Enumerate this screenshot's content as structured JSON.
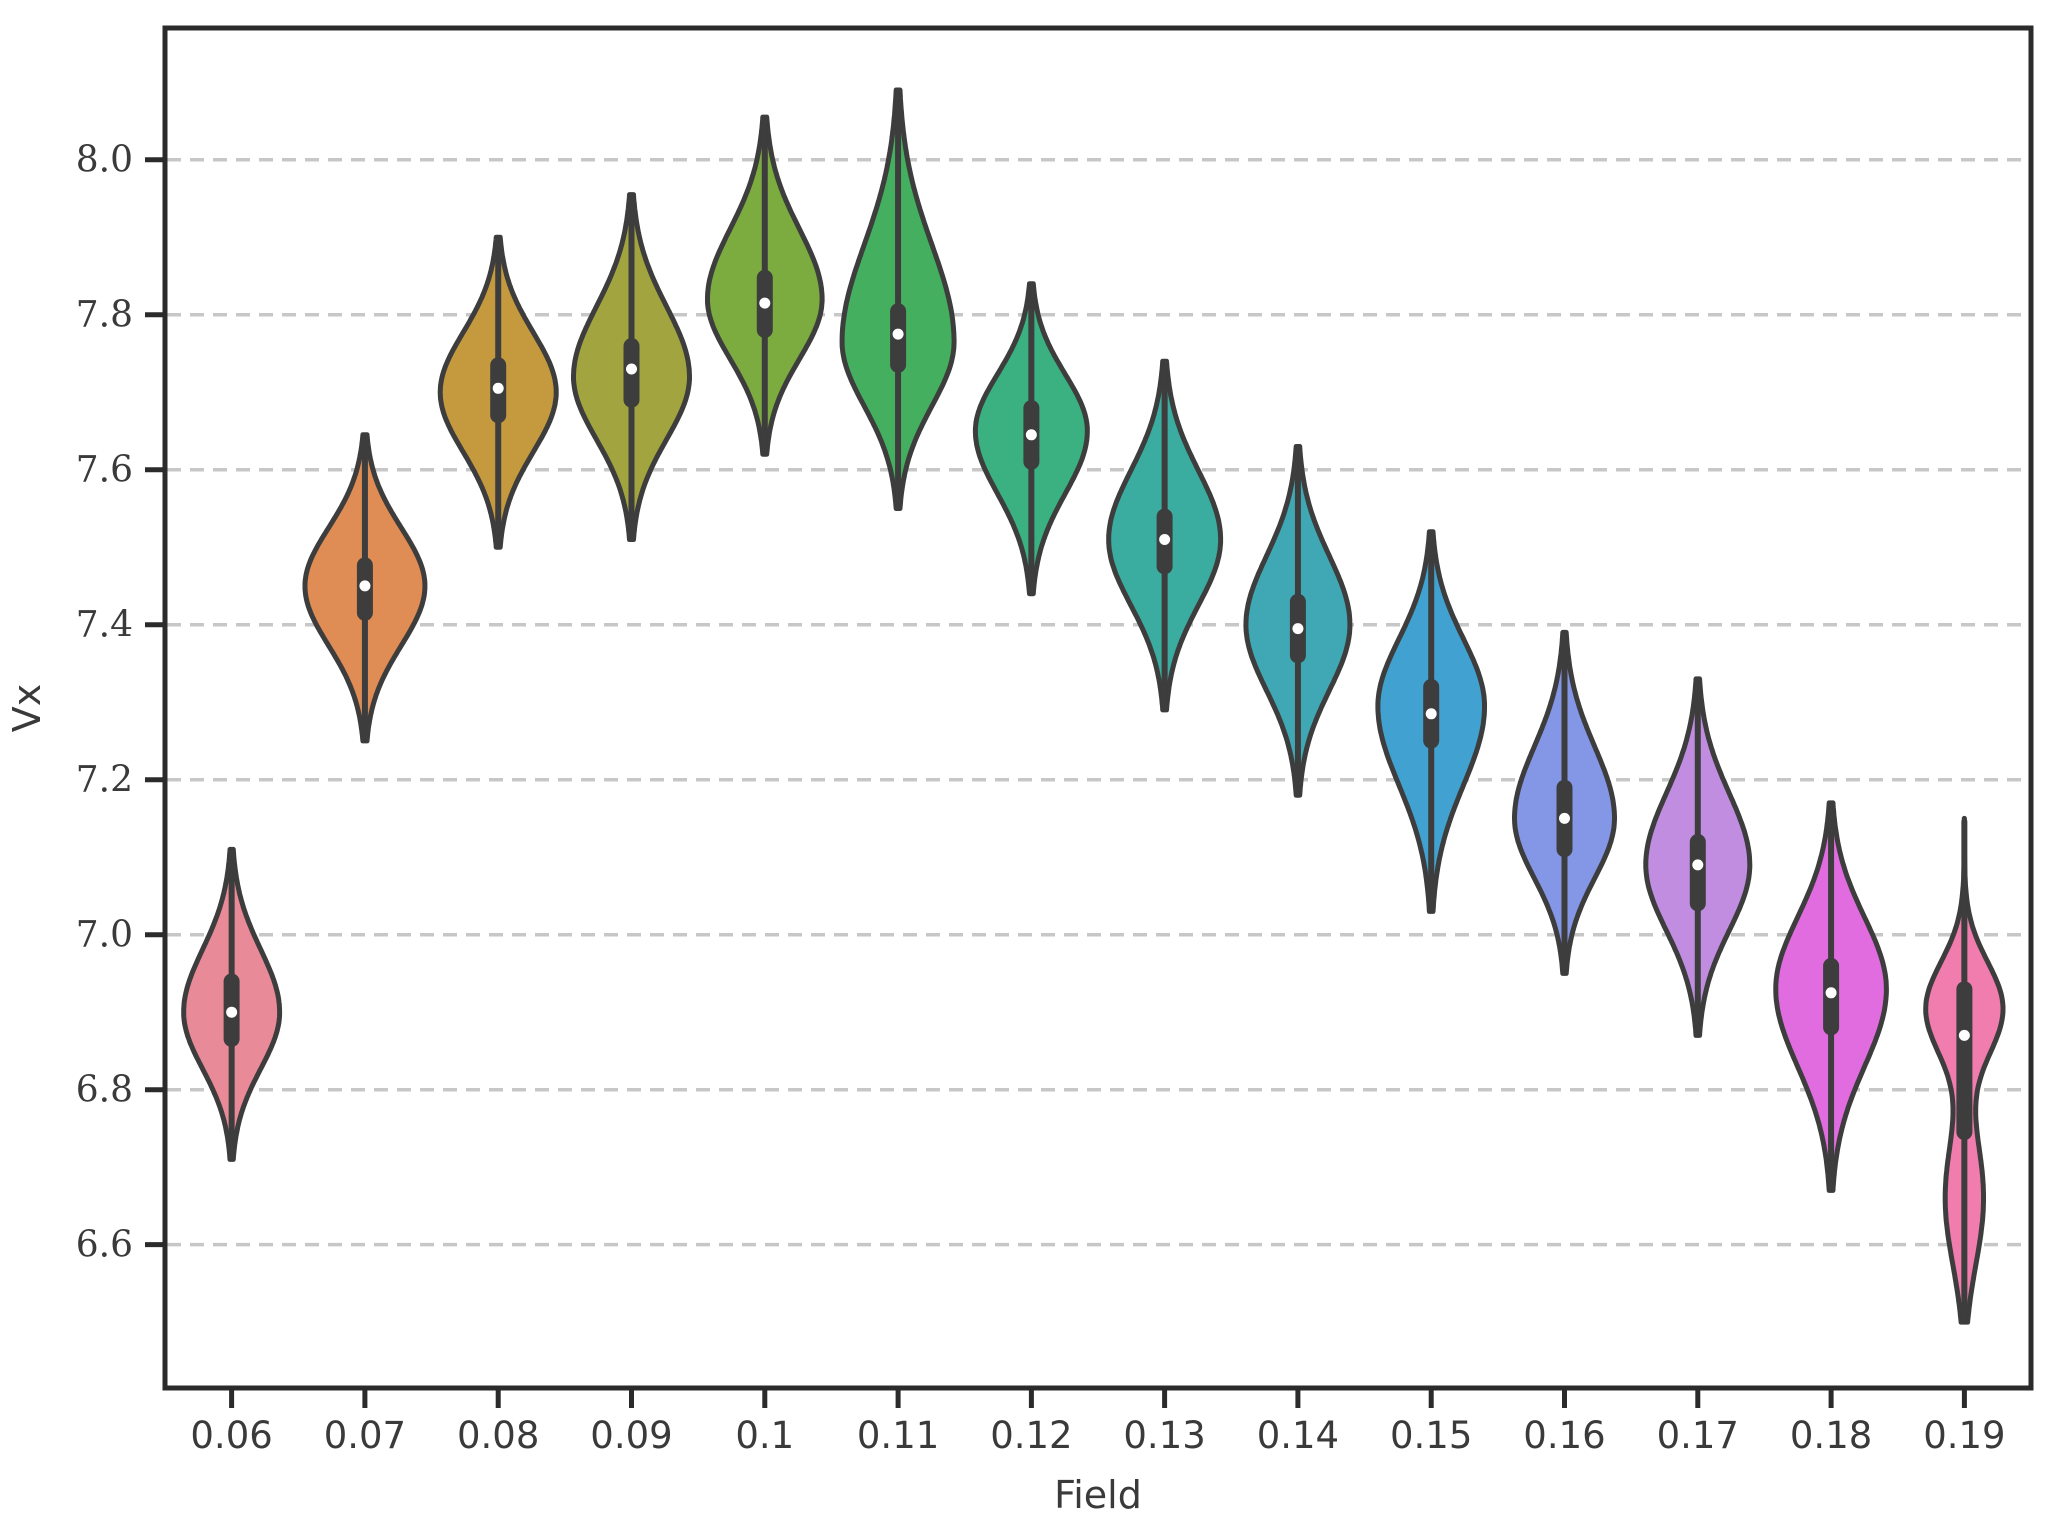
{
  "chart_data": {
    "type": "violin",
    "title": "",
    "xlabel": "Field",
    "ylabel": "Vx",
    "categories": [
      "0.06",
      "0.07",
      "0.08",
      "0.09",
      "0.1",
      "0.11",
      "0.12",
      "0.13",
      "0.14",
      "0.15",
      "0.16",
      "0.17",
      "0.18",
      "0.19"
    ],
    "ylim": [
      6.415,
      8.17
    ],
    "grid": "horizontal-dashed",
    "legend": "none",
    "y_ticks": [
      {
        "value": 6.6,
        "label": "6.6"
      },
      {
        "value": 6.8,
        "label": "6.8"
      },
      {
        "value": 7.0,
        "label": "7.0"
      },
      {
        "value": 7.2,
        "label": "7.2"
      },
      {
        "value": 7.4,
        "label": "7.4"
      },
      {
        "value": 7.6,
        "label": "7.6"
      },
      {
        "value": 7.8,
        "label": "7.8"
      },
      {
        "value": 8.0,
        "label": "8.0"
      }
    ],
    "violins": [
      {
        "label": "0.06",
        "color": "#e98a99",
        "min": 6.71,
        "q1": 6.855,
        "median": 6.9,
        "q3": 6.95,
        "max": 7.11,
        "mode": 6.9,
        "rel_width": 0.72
      },
      {
        "label": "0.07",
        "color": "#e08c55",
        "min": 7.25,
        "q1": 7.405,
        "median": 7.45,
        "q3": 7.487,
        "max": 7.645,
        "mode": 7.45,
        "rel_width": 0.9
      },
      {
        "label": "0.08",
        "color": "#c59a3f",
        "min": 7.5,
        "q1": 7.66,
        "median": 7.705,
        "q3": 7.745,
        "max": 7.9,
        "mode": 7.7,
        "rel_width": 0.87
      },
      {
        "label": "0.09",
        "color": "#a1a43f",
        "min": 7.51,
        "q1": 7.68,
        "median": 7.73,
        "q3": 7.77,
        "max": 7.955,
        "mode": 7.72,
        "rel_width": 0.87
      },
      {
        "label": "0.1",
        "color": "#7cab40",
        "min": 7.62,
        "q1": 7.77,
        "median": 7.815,
        "q3": 7.858,
        "max": 8.055,
        "mode": 7.82,
        "rel_width": 0.86
      },
      {
        "label": "0.11",
        "color": "#44b05f",
        "min": 7.55,
        "q1": 7.725,
        "median": 7.775,
        "q3": 7.815,
        "max": 8.09,
        "mode": 7.765,
        "rel_width": 0.84
      },
      {
        "label": "0.12",
        "color": "#3bb181",
        "min": 7.44,
        "q1": 7.6,
        "median": 7.645,
        "q3": 7.69,
        "max": 7.84,
        "mode": 7.65,
        "rel_width": 0.84
      },
      {
        "label": "0.13",
        "color": "#3aaca0",
        "min": 7.29,
        "q1": 7.465,
        "median": 7.51,
        "q3": 7.55,
        "max": 7.74,
        "mode": 7.51,
        "rel_width": 0.84
      },
      {
        "label": "0.14",
        "color": "#40a8b5",
        "min": 7.18,
        "q1": 7.35,
        "median": 7.395,
        "q3": 7.44,
        "max": 7.63,
        "mode": 7.4,
        "rel_width": 0.78
      },
      {
        "label": "0.15",
        "color": "#41a1d1",
        "min": 7.03,
        "q1": 7.24,
        "median": 7.285,
        "q3": 7.33,
        "max": 7.52,
        "mode": 7.295,
        "rel_width": 0.8
      },
      {
        "label": "0.16",
        "color": "#8496e6",
        "min": 6.95,
        "q1": 7.1,
        "median": 7.15,
        "q3": 7.2,
        "max": 7.39,
        "mode": 7.15,
        "rel_width": 0.75
      },
      {
        "label": "0.17",
        "color": "#c08de1",
        "min": 6.87,
        "q1": 7.03,
        "median": 7.09,
        "q3": 7.13,
        "max": 7.33,
        "mode": 7.09,
        "rel_width": 0.78
      },
      {
        "label": "0.18",
        "color": "#e06ce0",
        "min": 6.67,
        "q1": 6.87,
        "median": 6.925,
        "q3": 6.97,
        "max": 7.17,
        "mode": 6.93,
        "rel_width": 0.83
      },
      {
        "label": "0.19",
        "color": "#f07dae",
        "min": 6.5,
        "q1": 6.735,
        "median": 6.87,
        "q3": 6.94,
        "max": 7.15,
        "mode": 6.905,
        "rel_width": 0.58,
        "modes": [
          {
            "m": 6.905,
            "s": 0.06,
            "a": 1.0
          },
          {
            "m": 6.66,
            "s": 0.085,
            "a": 0.5
          }
        ]
      }
    ]
  },
  "style": {
    "background": "#ffffff",
    "violin_edge": "#3d3d3d",
    "box_fill": "#3d3d3d",
    "median_dot": "#ffffff",
    "grid_color": "#c7c7c7",
    "spine_color": "#2b2b2b",
    "text_color": "#3a3a3a"
  }
}
